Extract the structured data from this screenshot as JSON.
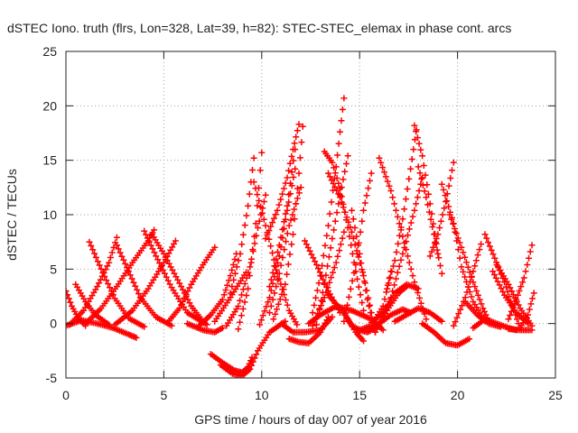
{
  "chart_data": {
    "type": "scatter",
    "title": "dSTEC Iono. truth (flrs, Lon=328, Lat=39, h=82): STEC-STEC_elemax in phase cont. arcs",
    "xlabel": "GPS time / hours of day 007 of year 2016",
    "ylabel": "dSTEC  / TECUs",
    "xlim": [
      0,
      25
    ],
    "ylim": [
      -5,
      25
    ],
    "xticks": [
      "0",
      "5",
      "10",
      "15",
      "20",
      "25"
    ],
    "yticks": [
      "-5",
      "0",
      "5",
      "10",
      "15",
      "20",
      "25"
    ],
    "grid": true,
    "marker": "+",
    "color": "#ff0000",
    "series": [
      {
        "x": [
          0.0,
          0.3,
          0.6,
          1.0
        ],
        "y": [
          3.0,
          1.6,
          0.6,
          -0.2
        ]
      },
      {
        "x": [
          0.0,
          0.8,
          1.6,
          2.4,
          3.2,
          3.6
        ],
        "y": [
          -0.2,
          0.3,
          0.0,
          -0.4,
          -1.0,
          -1.3
        ]
      },
      {
        "x": [
          0.5,
          1.0,
          1.5,
          2.2
        ],
        "y": [
          3.6,
          2.0,
          0.8,
          -0.1
        ]
      },
      {
        "x": [
          0.2,
          0.9,
          1.6,
          2.2,
          2.6
        ],
        "y": [
          -0.1,
          1.2,
          3.4,
          5.6,
          7.9
        ]
      },
      {
        "x": [
          1.2,
          1.8,
          2.5,
          3.2,
          4.0
        ],
        "y": [
          7.5,
          5.0,
          2.3,
          0.5,
          -0.3
        ]
      },
      {
        "x": [
          1.0,
          1.8,
          2.6,
          3.4,
          4.2,
          4.5
        ],
        "y": [
          0.0,
          1.4,
          3.4,
          5.6,
          7.6,
          8.6
        ]
      },
      {
        "x": [
          2.6,
          3.2,
          3.8,
          4.6,
          5.4
        ],
        "y": [
          7.2,
          4.8,
          2.4,
          0.6,
          -0.2
        ]
      },
      {
        "x": [
          2.5,
          3.4,
          4.2,
          5.0,
          5.6
        ],
        "y": [
          -0.1,
          1.2,
          3.2,
          5.6,
          7.6
        ]
      },
      {
        "x": [
          4.0,
          4.6,
          5.4,
          6.2,
          7.2
        ],
        "y": [
          8.5,
          6.2,
          3.3,
          1.0,
          -0.1
        ]
      },
      {
        "x": [
          4.4,
          5.0,
          5.8,
          6.4,
          7.0
        ],
        "y": [
          8.2,
          6.4,
          3.7,
          1.6,
          0.2
        ]
      },
      {
        "x": [
          5.2,
          5.8,
          6.4,
          7.0,
          7.6
        ],
        "y": [
          0.1,
          1.4,
          3.6,
          5.4,
          7.0
        ]
      },
      {
        "x": [
          6.2,
          7.0,
          7.6,
          8.0
        ],
        "y": [
          0.0,
          -0.6,
          -0.8,
          -0.4
        ]
      },
      {
        "x": [
          6.8,
          7.4,
          8.0,
          8.4,
          8.7
        ],
        "y": [
          -0.2,
          0.8,
          2.2,
          4.4,
          6.4
        ]
      },
      {
        "x": [
          7.6,
          8.4,
          9.2
        ],
        "y": [
          0.2,
          2.4,
          4.7
        ]
      },
      {
        "x": [
          7.4,
          8.0,
          8.6,
          9.0,
          9.3,
          9.5
        ],
        "y": [
          -2.8,
          -3.6,
          -4.3,
          -4.5,
          -4.0,
          -3.1
        ]
      },
      {
        "x": [
          7.9,
          8.5,
          9.0,
          9.4,
          9.8,
          10.4,
          11.2
        ],
        "y": [
          -3.8,
          -4.6,
          -4.8,
          -4.2,
          -2.5,
          -0.8,
          0.2
        ]
      },
      {
        "x": [
          8.2,
          8.8,
          9.4,
          9.8,
          10.2
        ],
        "y": [
          -0.2,
          1.6,
          5.2,
          8.8,
          11.8
        ]
      },
      {
        "x": [
          8.4,
          8.9,
          9.3,
          9.6
        ],
        "y": [
          2.8,
          6.4,
          10.8,
          15.2
        ]
      },
      {
        "x": [
          8.8,
          9.3,
          9.7,
          10.0
        ],
        "y": [
          -0.5,
          3.2,
          9.2,
          15.7
        ]
      },
      {
        "x": [
          9.6,
          10.2,
          10.8,
          11.4,
          11.8
        ],
        "y": [
          13.0,
          9.0,
          4.6,
          1.2,
          -0.1
        ]
      },
      {
        "x": [
          9.9,
          10.4,
          10.9,
          11.3,
          11.7
        ],
        "y": [
          -0.1,
          2.4,
          6.2,
          10.4,
          14.2
        ]
      },
      {
        "x": [
          10.4,
          10.9,
          11.3,
          11.7
        ],
        "y": [
          3.4,
          7.2,
          10.8,
          16.0
        ]
      },
      {
        "x": [
          10.4,
          10.9,
          11.4,
          12.0
        ],
        "y": [
          1.0,
          4.6,
          9.0,
          12.5
        ]
      },
      {
        "x": [
          10.2,
          10.8,
          11.3,
          11.6,
          11.9
        ],
        "y": [
          7.8,
          10.4,
          13.4,
          16.0,
          18.3
        ]
      },
      {
        "x": [
          10.6,
          11.2,
          11.6,
          11.9,
          12.1
        ],
        "y": [
          0.4,
          3.6,
          8.2,
          13.8,
          18.1
        ]
      },
      {
        "x": [
          11.0,
          11.6,
          12.2,
          13.0,
          13.6
        ],
        "y": [
          0.0,
          -0.8,
          -0.8,
          -0.6,
          0.6
        ]
      },
      {
        "x": [
          11.4,
          11.9,
          12.4,
          13.0,
          13.4
        ],
        "y": [
          -1.4,
          -1.7,
          -1.8,
          -0.8,
          0.6
        ]
      },
      {
        "x": [
          12.2,
          12.8,
          13.4,
          14.0
        ],
        "y": [
          7.6,
          5.4,
          3.0,
          1.0
        ]
      },
      {
        "x": [
          12.6,
          13.2,
          13.8,
          14.2
        ],
        "y": [
          -0.2,
          2.4,
          5.6,
          8.4
        ]
      },
      {
        "x": [
          12.6,
          13.0,
          13.4,
          13.8,
          14.0,
          14.2
        ],
        "y": [
          1.0,
          4.4,
          9.0,
          14.4,
          17.6,
          20.7
        ]
      },
      {
        "x": [
          12.8,
          13.2,
          13.6,
          14.0,
          14.4
        ],
        "y": [
          -0.1,
          3.6,
          7.8,
          11.8,
          15.4
        ]
      },
      {
        "x": [
          13.2,
          13.6,
          14.0,
          14.4,
          14.8,
          15.2
        ],
        "y": [
          15.8,
          14.8,
          12.4,
          8.8,
          4.8,
          1.2
        ]
      },
      {
        "x": [
          13.4,
          14.0,
          14.6,
          15.2,
          15.6
        ],
        "y": [
          13.8,
          11.6,
          8.4,
          4.4,
          1.0
        ]
      },
      {
        "x": [
          12.4,
          13.0,
          13.8,
          14.6,
          15.6,
          16.2
        ],
        "y": [
          0.0,
          0.8,
          1.6,
          1.2,
          0.4,
          -0.6
        ]
      },
      {
        "x": [
          13.4,
          14.0,
          14.4,
          14.8,
          15.2
        ],
        "y": [
          2.6,
          1.4,
          0.4,
          -0.8,
          -1.6
        ]
      },
      {
        "x": [
          14.2,
          14.8,
          15.2,
          15.6
        ],
        "y": [
          0.2,
          5.4,
          10.4,
          13.8
        ]
      },
      {
        "x": [
          14.6,
          15.0,
          15.4,
          15.8
        ],
        "y": [
          10.4,
          6.4,
          2.2,
          -0.8
        ]
      },
      {
        "x": [
          14.2,
          14.6,
          15.0,
          15.4,
          15.8
        ],
        "y": [
          1.0,
          -0.2,
          -0.6,
          -0.8,
          -0.4
        ]
      },
      {
        "x": [
          15.0,
          15.6,
          16.2,
          16.6
        ],
        "y": [
          -0.6,
          -0.2,
          1.6,
          4.8
        ]
      },
      {
        "x": [
          15.4,
          16.0,
          16.6,
          17.2,
          17.6
        ],
        "y": [
          -0.6,
          0.0,
          0.8,
          1.3,
          1.0
        ]
      },
      {
        "x": [
          15.6,
          16.2,
          16.8,
          17.4,
          18.0
        ],
        "y": [
          0.1,
          1.0,
          2.8,
          3.6,
          3.2
        ]
      },
      {
        "x": [
          15.8,
          16.4,
          17.0,
          17.4
        ],
        "y": [
          -0.8,
          1.2,
          2.8,
          3.4
        ]
      },
      {
        "x": [
          16.0,
          16.6,
          17.2,
          17.8,
          18.4
        ],
        "y": [
          15.2,
          12.2,
          8.0,
          3.8,
          0.4
        ]
      },
      {
        "x": [
          16.0,
          16.6,
          17.2,
          17.8,
          18.2
        ],
        "y": [
          -0.2,
          2.4,
          6.4,
          10.4,
          13.4
        ]
      },
      {
        "x": [
          16.4,
          16.8,
          17.2,
          17.6,
          17.9
        ],
        "y": [
          3.2,
          5.8,
          9.6,
          14.2,
          17.8
        ]
      },
      {
        "x": [
          16.8,
          17.4,
          18.0,
          18.6,
          19.2
        ],
        "y": [
          0.2,
          0.8,
          1.4,
          1.0,
          0.2
        ]
      },
      {
        "x": [
          17.8,
          18.2,
          18.6,
          19.0
        ],
        "y": [
          18.2,
          15.4,
          11.0,
          6.4
        ]
      },
      {
        "x": [
          18.0,
          18.4,
          18.8,
          19.2
        ],
        "y": [
          14.4,
          11.6,
          8.2,
          4.6
        ]
      },
      {
        "x": [
          18.2,
          18.8,
          19.4,
          20.0,
          20.6
        ],
        "y": [
          0.0,
          -0.8,
          -1.8,
          -2.0,
          -1.4
        ]
      },
      {
        "x": [
          18.6,
          19.0,
          19.4,
          19.8
        ],
        "y": [
          6.2,
          8.2,
          11.2,
          14.8
        ]
      },
      {
        "x": [
          19.2,
          19.8,
          20.2,
          20.8,
          21.4
        ],
        "y": [
          12.8,
          9.2,
          5.2,
          2.0,
          0.2
        ]
      },
      {
        "x": [
          19.6,
          20.2,
          20.8,
          21.3,
          21.6
        ],
        "y": [
          10.0,
          7.0,
          3.8,
          1.4,
          0.2
        ]
      },
      {
        "x": [
          19.8,
          20.4,
          20.8,
          21.2
        ],
        "y": [
          -0.2,
          2.4,
          4.8,
          7.3
        ]
      },
      {
        "x": [
          20.4,
          21.0,
          21.6,
          22.2
        ],
        "y": [
          2.0,
          0.8,
          0.0,
          -0.3
        ]
      },
      {
        "x": [
          20.8,
          21.4,
          22.0,
          22.6,
          23.0
        ],
        "y": [
          -0.4,
          0.4,
          0.0,
          -0.4,
          -0.6
        ]
      },
      {
        "x": [
          21.4,
          21.9,
          22.4,
          22.8,
          23.2
        ],
        "y": [
          8.2,
          6.0,
          3.8,
          1.6,
          -0.4
        ]
      },
      {
        "x": [
          21.8,
          22.4,
          23.0,
          23.6
        ],
        "y": [
          4.8,
          2.6,
          1.0,
          0.0
        ]
      },
      {
        "x": [
          22.0,
          22.6,
          23.2,
          23.8
        ],
        "y": [
          5.4,
          3.6,
          1.4,
          -0.2
        ]
      },
      {
        "x": [
          22.6,
          23.2,
          23.8
        ],
        "y": [
          -0.5,
          -0.6,
          -0.6
        ]
      },
      {
        "x": [
          22.6,
          23.0,
          23.4,
          23.8
        ],
        "y": [
          0.4,
          2.2,
          4.2,
          7.2
        ]
      },
      {
        "x": [
          23.2,
          23.6,
          23.9
        ],
        "y": [
          -0.4,
          0.8,
          2.8
        ]
      }
    ]
  }
}
